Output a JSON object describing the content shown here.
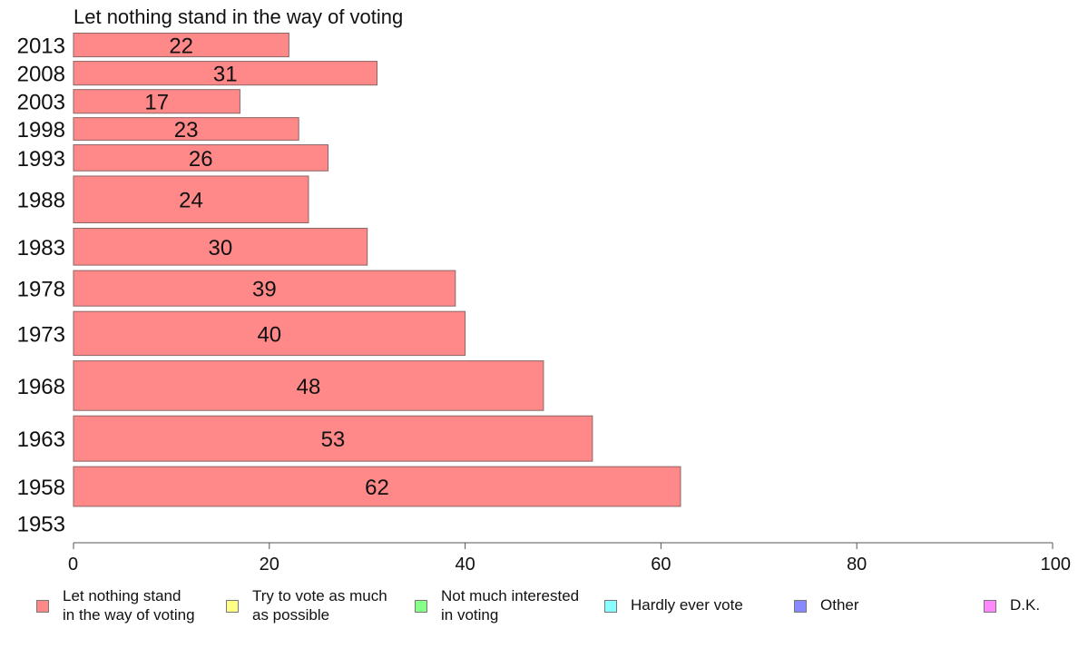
{
  "chart_data": {
    "type": "bar",
    "orientation": "horizontal",
    "title": "Let nothing stand in the way of voting",
    "categories": [
      "2013",
      "2008",
      "2003",
      "1998",
      "1993",
      "1988",
      "1983",
      "1978",
      "1973",
      "1968",
      "1963",
      "1958",
      "1953"
    ],
    "series": [
      {
        "name": "Let nothing stand in the way of voting",
        "values": [
          22,
          31,
          17,
          23,
          26,
          24,
          30,
          39,
          40,
          48,
          53,
          62,
          null
        ],
        "color": "#ff8888"
      }
    ],
    "bar_widths": [
      1.0,
      1.0,
      1.0,
      0.95,
      1.1,
      1.85,
      1.5,
      1.45,
      1.75,
      1.95,
      1.8,
      1.6,
      1.0
    ],
    "xlim": [
      0,
      100
    ],
    "xticks": [
      0,
      20,
      40,
      60,
      80,
      100
    ],
    "grid": false,
    "legend_position": "bottom"
  },
  "legend": [
    {
      "label": "Let nothing stand\nin the way of voting",
      "color": "#ff8888"
    },
    {
      "label": "Try to vote as much\nas possible",
      "color": "#ffff88"
    },
    {
      "label": "Not much interested\nin voting",
      "color": "#88ff88"
    },
    {
      "label": "Hardly ever vote",
      "color": "#88ffff"
    },
    {
      "label": "Other",
      "color": "#8888ff"
    },
    {
      "label": "D.K.",
      "color": "#ff88ff"
    }
  ]
}
